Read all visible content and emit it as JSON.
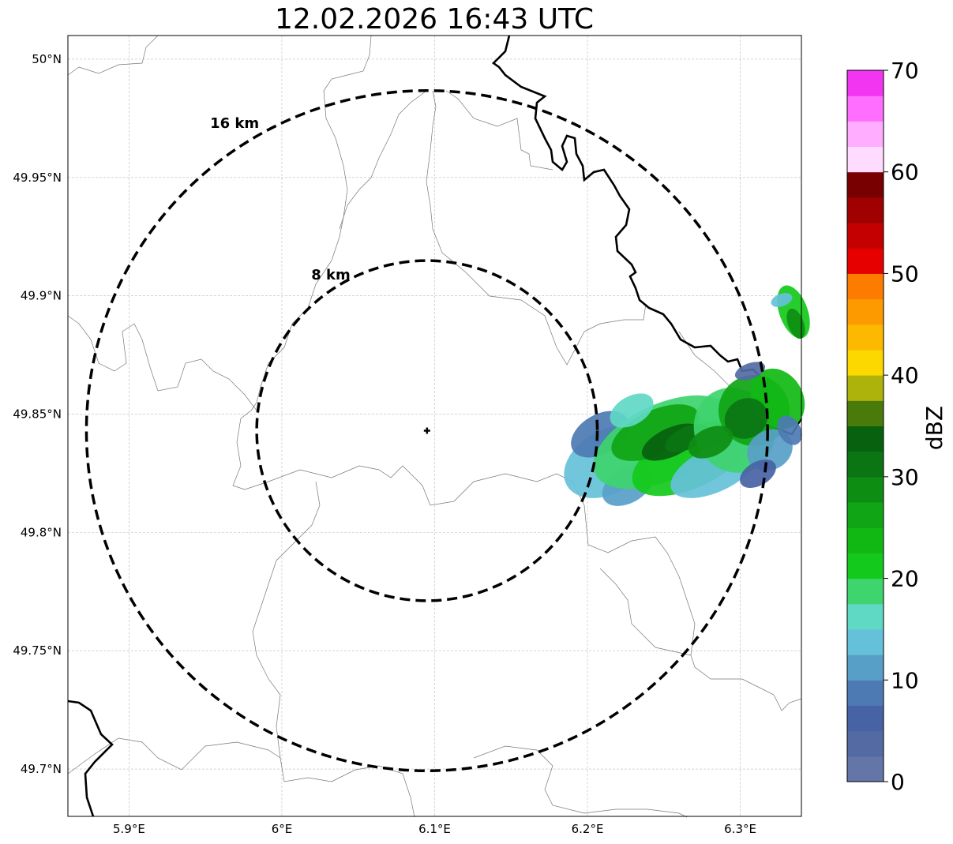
{
  "title": "12.02.2026 16:43 UTC",
  "map": {
    "lon_range": [
      5.86,
      6.34
    ],
    "lat_range": [
      49.68,
      50.01
    ],
    "lon_ticks": [
      {
        "value": 5.9,
        "label": "5.9°E"
      },
      {
        "value": 6.0,
        "label": "6°E"
      },
      {
        "value": 6.1,
        "label": "6.1°E"
      },
      {
        "value": 6.2,
        "label": "6.2°E"
      },
      {
        "value": 6.3,
        "label": "6.3°E"
      }
    ],
    "lat_ticks": [
      {
        "value": 50.0,
        "label": "50°N"
      },
      {
        "value": 49.95,
        "label": "49.95°N"
      },
      {
        "value": 49.9,
        "label": "49.9°N"
      },
      {
        "value": 49.85,
        "label": "49.85°N"
      },
      {
        "value": 49.8,
        "label": "49.8°N"
      },
      {
        "value": 49.75,
        "label": "49.75°N"
      },
      {
        "value": 49.7,
        "label": "49.7°N"
      }
    ],
    "grid": true,
    "radar_site": {
      "lon": 6.095,
      "lat": 49.843
    },
    "range_rings": [
      {
        "radius_km": 8,
        "label": "8 km"
      },
      {
        "radius_km": 16,
        "label": "16 km"
      }
    ],
    "echo_region": "east / north-east of the site, max ~35 dBZ"
  },
  "colorbar": {
    "label": "dBZ",
    "min": 0,
    "max": 70,
    "step": 2.5,
    "ticks": [
      "0",
      "10",
      "20",
      "30",
      "40",
      "50",
      "60",
      "70"
    ],
    "colors": [
      "#6476a8",
      "#546aa3",
      "#4863a5",
      "#4d7ab2",
      "#589fc8",
      "#65c1d9",
      "#5fd8c4",
      "#3ed46e",
      "#13c91b",
      "#11b814",
      "#0fa514",
      "#0e8d13",
      "#0b7513",
      "#08610e",
      "#4a7a0a",
      "#adb30a",
      "#fdd700",
      "#fdb800",
      "#fd9a00",
      "#fd7c00",
      "#e60000",
      "#c40000",
      "#a00000",
      "#780000",
      "#ffdcff",
      "#ffaeff",
      "#ff6eff",
      "#f235f0"
    ]
  }
}
